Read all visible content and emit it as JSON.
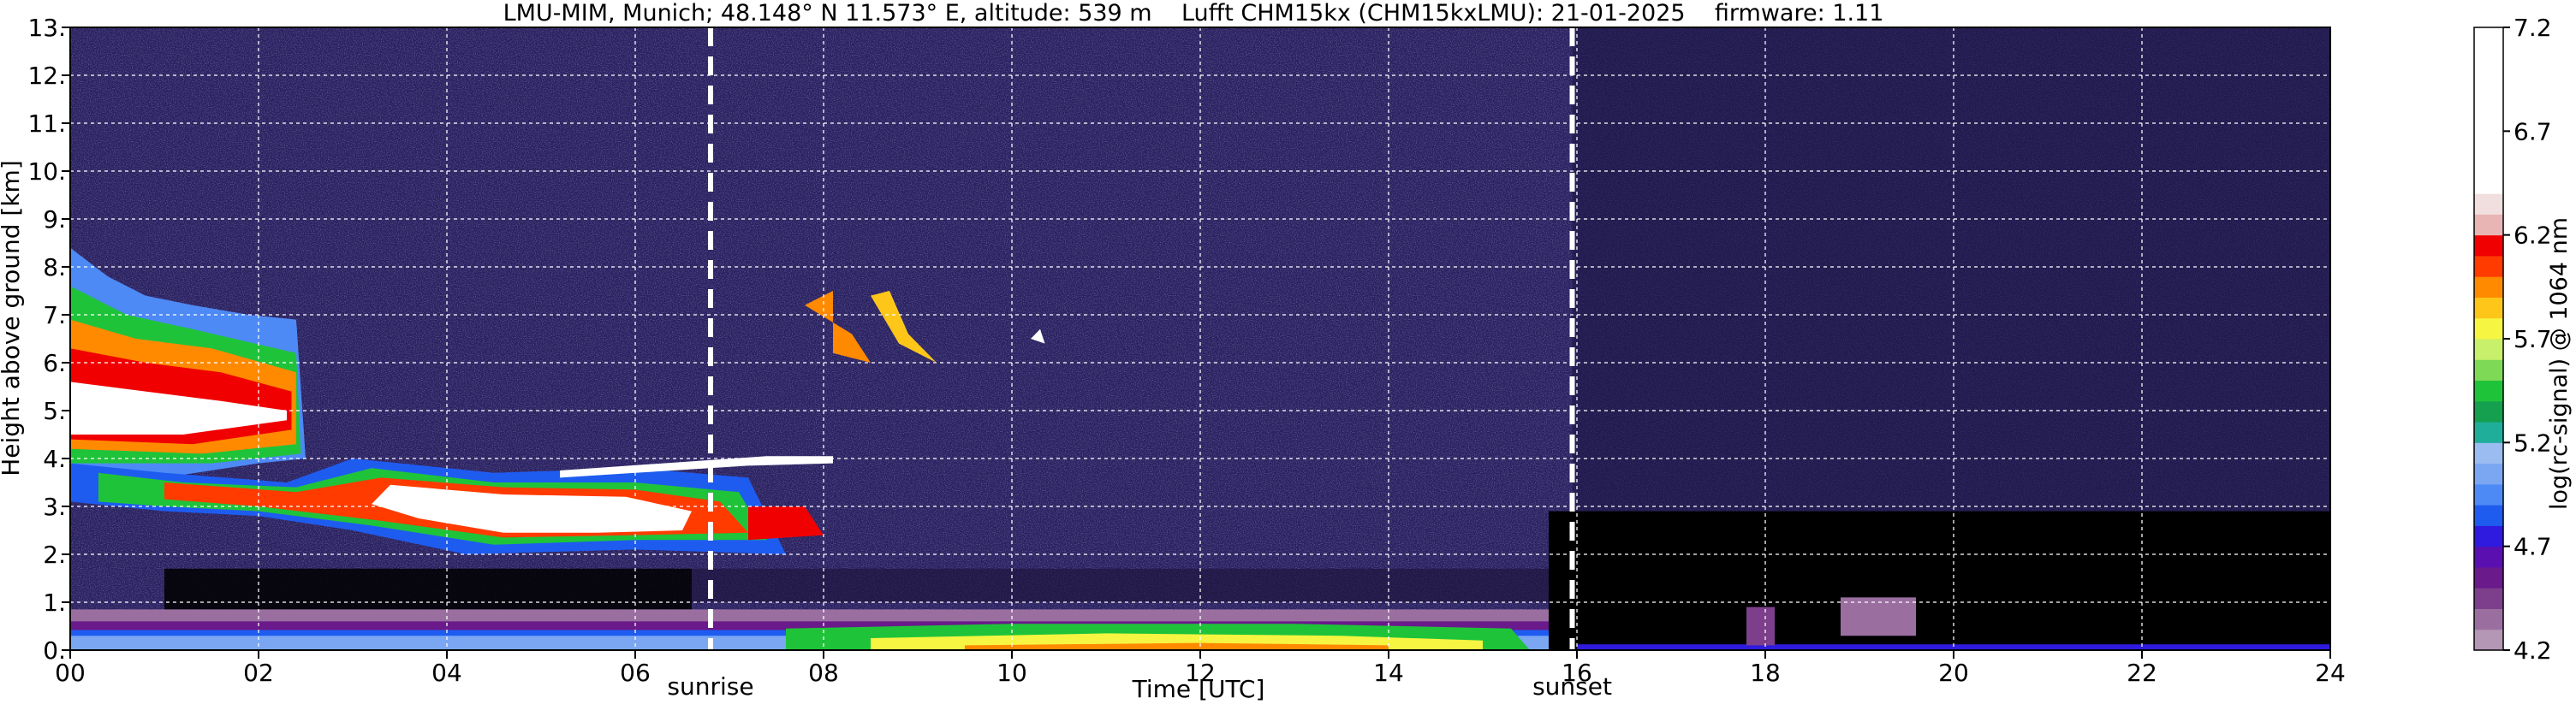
{
  "chart_data": {
    "type": "heatmap",
    "title": "LMU-MIM, Munich; 48.148° N 11.573° E, altitude: 539 m    Lufft CHM15kx (CHM15kxLMU): 21-01-2025    firmware: 1.11",
    "xlabel": "Time [UTC]",
    "ylabel": "Height above ground [km]",
    "xlim": [
      0,
      24
    ],
    "ylim": [
      0,
      13
    ],
    "x_ticks": [
      0,
      2,
      4,
      6,
      8,
      10,
      12,
      14,
      16,
      18,
      20,
      22,
      24
    ],
    "x_tick_labels": [
      "00",
      "02",
      "04",
      "06",
      "08",
      "10",
      "12",
      "14",
      "16",
      "18",
      "20",
      "22",
      "24"
    ],
    "y_ticks": [
      0,
      1,
      2,
      3,
      4,
      5,
      6,
      7,
      8,
      9,
      10,
      11,
      12,
      13
    ],
    "y_tick_labels": [
      "0.",
      "1.",
      "2.",
      "3.",
      "4.",
      "5.",
      "6.",
      "7.",
      "8.",
      "9.",
      "10.",
      "11.",
      "12.",
      "13."
    ],
    "grid": true,
    "markers": [
      {
        "label": "sunrise",
        "x": 6.8
      },
      {
        "label": "sunset",
        "x": 15.95
      }
    ],
    "colorbar": {
      "label": "log(rc-signal) @ 1064 nm",
      "min": 4.2,
      "max": 7.2,
      "ticks": [
        4.2,
        4.7,
        5.2,
        5.7,
        6.2,
        6.7,
        7.2
      ],
      "tick_labels": [
        "4.2",
        "4.7",
        "5.2",
        "5.7",
        "6.2",
        "6.7",
        "7.2"
      ],
      "levels": [
        {
          "from": 4.2,
          "to": 4.3,
          "color": "#b497b4"
        },
        {
          "from": 4.3,
          "to": 4.4,
          "color": "#9a6fa0"
        },
        {
          "from": 4.4,
          "to": 4.5,
          "color": "#7d3f8c"
        },
        {
          "from": 4.5,
          "to": 4.6,
          "color": "#6a1a8a"
        },
        {
          "from": 4.6,
          "to": 4.7,
          "color": "#5a0fb0"
        },
        {
          "from": 4.7,
          "to": 4.8,
          "color": "#2f1be0"
        },
        {
          "from": 4.8,
          "to": 4.9,
          "color": "#1e5cf0"
        },
        {
          "from": 4.9,
          "to": 5.0,
          "color": "#4d8af5"
        },
        {
          "from": 5.0,
          "to": 5.1,
          "color": "#7aa6f2"
        },
        {
          "from": 5.1,
          "to": 5.2,
          "color": "#9bbcf0"
        },
        {
          "from": 5.2,
          "to": 5.3,
          "color": "#1fae9a"
        },
        {
          "from": 5.3,
          "to": 5.4,
          "color": "#15a050"
        },
        {
          "from": 5.4,
          "to": 5.5,
          "color": "#1fc33a"
        },
        {
          "from": 5.5,
          "to": 5.6,
          "color": "#7ed957"
        },
        {
          "from": 5.6,
          "to": 5.7,
          "color": "#c8f06a"
        },
        {
          "from": 5.7,
          "to": 5.8,
          "color": "#f5f542"
        },
        {
          "from": 5.8,
          "to": 5.9,
          "color": "#ffc61a"
        },
        {
          "from": 5.9,
          "to": 6.0,
          "color": "#ff8a00"
        },
        {
          "from": 6.0,
          "to": 6.1,
          "color": "#ff3b00"
        },
        {
          "from": 6.1,
          "to": 6.2,
          "color": "#f00000"
        },
        {
          "from": 6.2,
          "to": 6.3,
          "color": "#e8b4b4"
        },
        {
          "from": 6.3,
          "to": 6.4,
          "color": "#f1dede"
        },
        {
          "from": 6.4,
          "to": 7.2,
          "color": "#ffffff"
        }
      ]
    },
    "colors": {
      "background_noise": "#2a2260",
      "no_signal": "#000000"
    }
  }
}
